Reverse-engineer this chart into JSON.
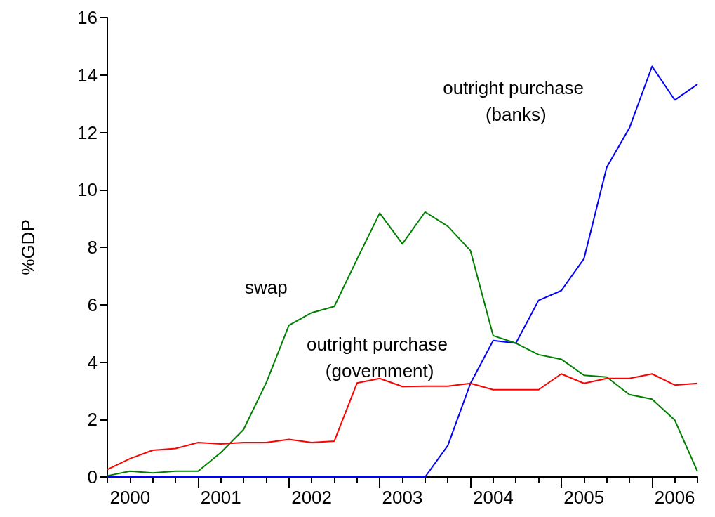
{
  "chart_data": {
    "type": "line",
    "ylabel": "%GDP",
    "categories": [
      null,
      "2000",
      null,
      null,
      null,
      "2001",
      null,
      null,
      null,
      "2002",
      null,
      null,
      null,
      "2003",
      null,
      null,
      null,
      "2004",
      null,
      null,
      null,
      "2005",
      null,
      null,
      null,
      "2006",
      null
    ],
    "ylim": [
      0,
      16
    ],
    "yticks": [
      0,
      2,
      4,
      6,
      8,
      10,
      12,
      14,
      16
    ],
    "grid": false,
    "legend": false,
    "marker": "none",
    "line_style": "solid",
    "series": [
      {
        "name": "outright purchase (banks)",
        "color": "#0000ff",
        "values": [
          0,
          0,
          0,
          0,
          0,
          0,
          0,
          0,
          0,
          0,
          0,
          0,
          0,
          0,
          0,
          1.09,
          3.26,
          4.75,
          4.66,
          6.15,
          6.49,
          7.6,
          10.78,
          12.15,
          14.3,
          13.13,
          13.68
        ]
      },
      {
        "name": "swap",
        "color": "#008000",
        "values": [
          0.04,
          0.2,
          0.14,
          0.2,
          0.2,
          0.85,
          1.65,
          3.28,
          5.28,
          5.72,
          5.94,
          7.58,
          9.19,
          8.12,
          9.23,
          8.73,
          7.88,
          4.92,
          4.66,
          4.26,
          4.1,
          3.54,
          3.48,
          2.87,
          2.71,
          1.98,
          0.19
        ]
      },
      {
        "name": "outright purchase (government)",
        "color": "#ff0000",
        "values": [
          0.26,
          0.64,
          0.93,
          0.99,
          1.2,
          1.15,
          1.2,
          1.2,
          1.31,
          1.2,
          1.25,
          3.27,
          3.43,
          3.15,
          3.16,
          3.16,
          3.26,
          3.04,
          3.04,
          3.04,
          3.59,
          3.26,
          3.43,
          3.43,
          3.59,
          3.2,
          3.26
        ]
      }
    ]
  }
}
